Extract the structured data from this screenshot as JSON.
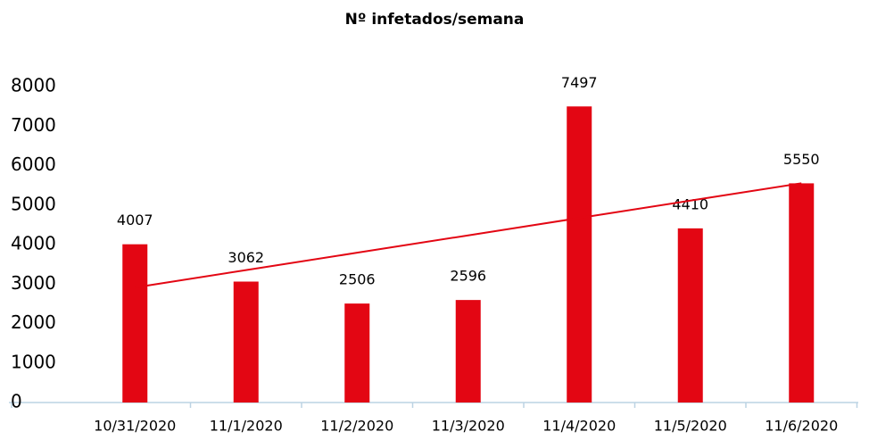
{
  "chart_data": {
    "type": "bar",
    "title": "Nº infetados/semana",
    "categories": [
      "10/31/2020",
      "11/1/2020",
      "11/2/2020",
      "11/3/2020",
      "11/4/2020",
      "11/5/2020",
      "11/6/2020"
    ],
    "values": [
      4007,
      3062,
      2506,
      2596,
      7497,
      4410,
      5550
    ],
    "color": "#e30613",
    "ylim": [
      0,
      8000
    ],
    "yticks": [
      0,
      1000,
      2000,
      3000,
      4000,
      5000,
      6000,
      7000,
      8000
    ],
    "grid": false,
    "trendline": "linear",
    "trendline_color": "#e30613"
  }
}
